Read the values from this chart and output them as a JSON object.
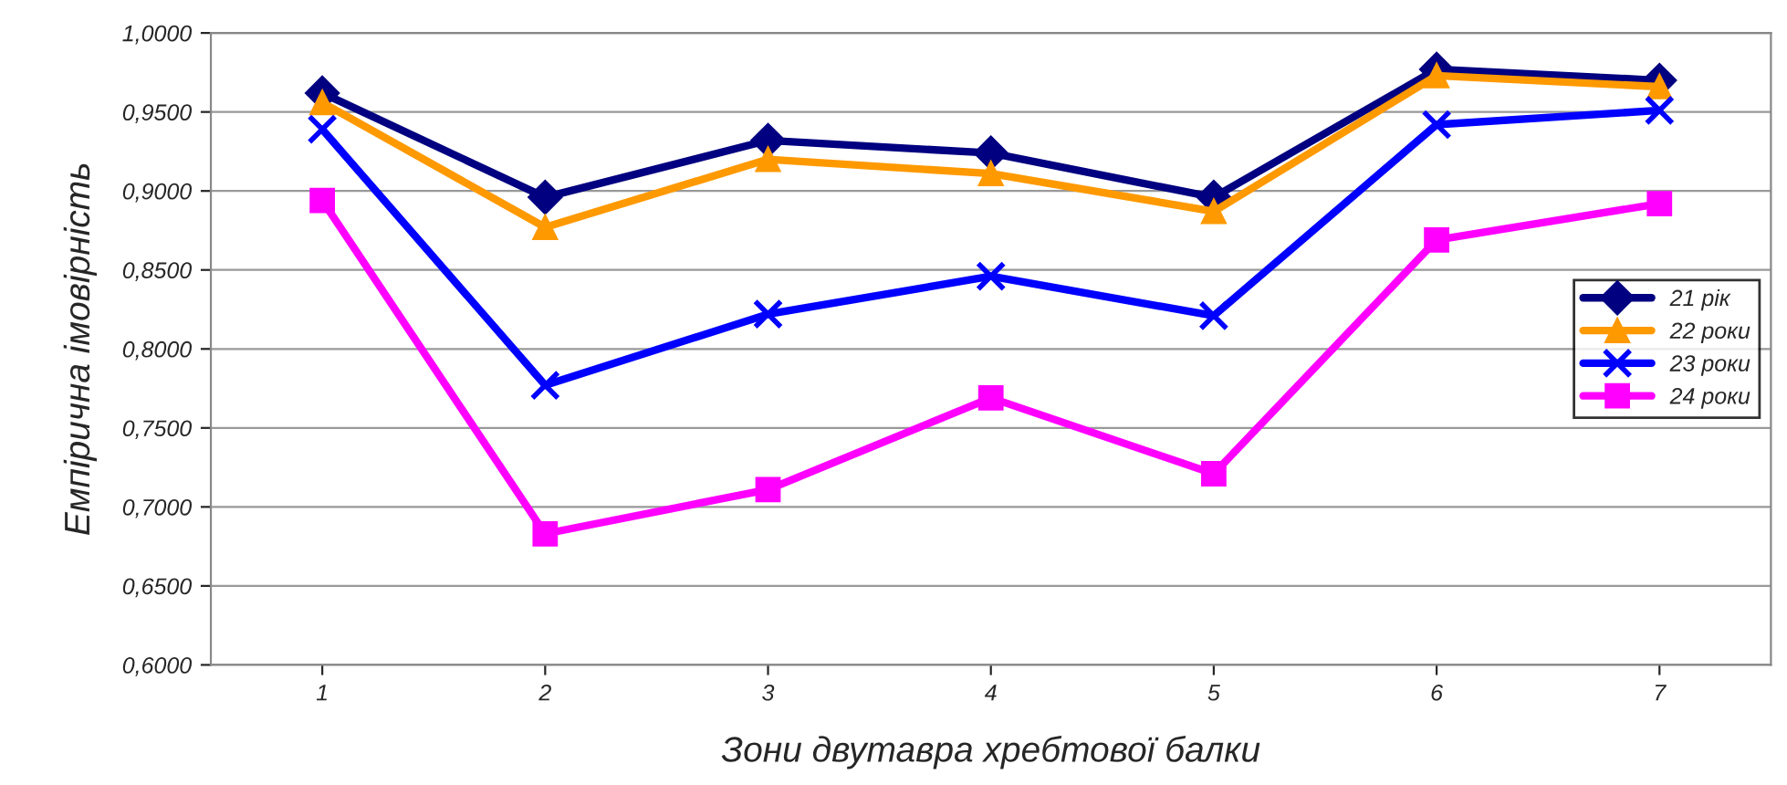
{
  "chart_data": {
    "type": "line",
    "xlabel": "Зони двутавра хребтової балки",
    "ylabel": "Емпірична імовірність",
    "categories": [
      "1",
      "2",
      "3",
      "4",
      "5",
      "6",
      "7"
    ],
    "series": [
      {
        "name": "21 рік",
        "color": "#000080",
        "marker": "diamond",
        "values": [
          0.962,
          0.896,
          0.932,
          0.924,
          0.896,
          0.977,
          0.97
        ]
      },
      {
        "name": "22 роки",
        "color": "#ff9900",
        "marker": "triangle",
        "values": [
          0.956,
          0.877,
          0.92,
          0.911,
          0.887,
          0.973,
          0.966
        ]
      },
      {
        "name": "23 роки",
        "color": "#0000ff",
        "marker": "cross",
        "values": [
          0.939,
          0.777,
          0.822,
          0.846,
          0.821,
          0.942,
          0.951
        ]
      },
      {
        "name": "24 роки",
        "color": "#ff00ff",
        "marker": "square",
        "values": [
          0.894,
          0.683,
          0.711,
          0.769,
          0.721,
          0.869,
          0.892
        ]
      }
    ],
    "ylim": [
      0.6,
      1.0
    ],
    "yticks": [
      {
        "value": 0.6,
        "label": "0,6000"
      },
      {
        "value": 0.65,
        "label": "0,6500"
      },
      {
        "value": 0.7,
        "label": "0,7000"
      },
      {
        "value": 0.75,
        "label": "0,7500"
      },
      {
        "value": 0.8,
        "label": "0,8000"
      },
      {
        "value": 0.85,
        "label": "0,8500"
      },
      {
        "value": 0.9,
        "label": "0,9000"
      },
      {
        "value": 0.95,
        "label": "0,9500"
      },
      {
        "value": 1.0,
        "label": "1,0000"
      }
    ],
    "grid": "y",
    "legend": "center right",
    "line_style": "solid"
  }
}
